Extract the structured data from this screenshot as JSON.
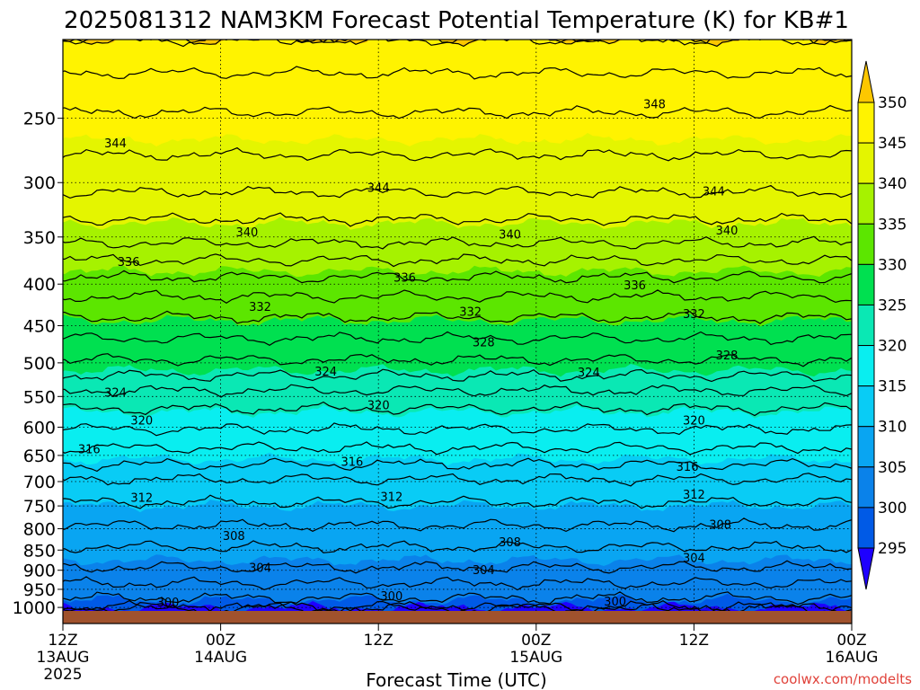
{
  "chart_data": {
    "type": "heatmap",
    "title": "2025081312 NAM3KM Forecast Potential Temperature (K) for KB#1",
    "xlabel": "Forecast Time (UTC)",
    "ylabel": "",
    "credit": "coolwx.com/modelts",
    "x_ticks": [
      {
        "label": "12Z",
        "sub": "13AUG",
        "year": "2025",
        "hour": 0
      },
      {
        "label": "00Z",
        "sub": "14AUG",
        "year": "",
        "hour": 12
      },
      {
        "label": "12Z",
        "sub": "",
        "year": "",
        "hour": 24
      },
      {
        "label": "00Z",
        "sub": "15AUG",
        "year": "",
        "hour": 36
      },
      {
        "label": "12Z",
        "sub": "",
        "year": "",
        "hour": 48
      },
      {
        "label": "00Z",
        "sub": "16AUG",
        "year": "",
        "hour": 60
      }
    ],
    "xlim_hours": [
      0,
      60
    ],
    "y_scale": "log",
    "y_ticks": [
      250,
      300,
      350,
      400,
      450,
      500,
      550,
      600,
      650,
      700,
      750,
      800,
      850,
      900,
      950,
      1000
    ],
    "ylim": [
      1010,
      200
    ],
    "grid": true,
    "colorbar": {
      "levels": [
        295,
        300,
        305,
        310,
        315,
        320,
        325,
        330,
        335,
        340,
        345,
        350
      ],
      "colors": [
        "#1e00ff",
        "#005ae6",
        "#0a82ea",
        "#09a5f2",
        "#09ccf5",
        "#09eef0",
        "#0ae8b4",
        "#00e050",
        "#5ce600",
        "#a6f200",
        "#e4f500",
        "#fff300",
        "#fdc700"
      ],
      "extend": "both"
    },
    "series": [
      {
        "pressure": 1000,
        "theta": 299
      },
      {
        "pressure": 950,
        "theta": 301.5
      },
      {
        "pressure": 900,
        "theta": 304
      },
      {
        "pressure": 850,
        "theta": 306
      },
      {
        "pressure": 800,
        "theta": 308
      },
      {
        "pressure": 750,
        "theta": 310
      },
      {
        "pressure": 700,
        "theta": 312
      },
      {
        "pressure": 650,
        "theta": 315.5
      },
      {
        "pressure": 600,
        "theta": 318.5
      },
      {
        "pressure": 550,
        "theta": 321.5
      },
      {
        "pressure": 500,
        "theta": 326
      },
      {
        "pressure": 450,
        "theta": 329.5
      },
      {
        "pressure": 400,
        "theta": 333.5
      },
      {
        "pressure": 350,
        "theta": 339
      },
      {
        "pressure": 300,
        "theta": 343
      },
      {
        "pressure": 250,
        "theta": 346
      },
      {
        "pressure": 200,
        "theta": 350
      }
    ],
    "contour_labels": [
      {
        "text": "348",
        "hour": 45,
        "pressure": 240
      },
      {
        "text": "344",
        "hour": 4,
        "pressure": 268
      },
      {
        "text": "344",
        "hour": 24,
        "pressure": 304
      },
      {
        "text": "344",
        "hour": 49.5,
        "pressure": 307
      },
      {
        "text": "340",
        "hour": 14,
        "pressure": 345
      },
      {
        "text": "340",
        "hour": 34,
        "pressure": 347
      },
      {
        "text": "340",
        "hour": 50.5,
        "pressure": 343
      },
      {
        "text": "336",
        "hour": 5,
        "pressure": 375
      },
      {
        "text": "336",
        "hour": 26,
        "pressure": 392
      },
      {
        "text": "336",
        "hour": 43.5,
        "pressure": 401
      },
      {
        "text": "332",
        "hour": 15,
        "pressure": 426
      },
      {
        "text": "332",
        "hour": 31,
        "pressure": 432
      },
      {
        "text": "332",
        "hour": 48,
        "pressure": 435
      },
      {
        "text": "328",
        "hour": 32,
        "pressure": 471
      },
      {
        "text": "328",
        "hour": 50.5,
        "pressure": 489
      },
      {
        "text": "324",
        "hour": 20,
        "pressure": 512
      },
      {
        "text": "324",
        "hour": 4,
        "pressure": 543
      },
      {
        "text": "324",
        "hour": 40,
        "pressure": 513
      },
      {
        "text": "320",
        "hour": 6,
        "pressure": 588
      },
      {
        "text": "320",
        "hour": 24,
        "pressure": 563
      },
      {
        "text": "320",
        "hour": 48,
        "pressure": 588
      },
      {
        "text": "316",
        "hour": 2,
        "pressure": 638
      },
      {
        "text": "316",
        "hour": 22,
        "pressure": 661
      },
      {
        "text": "316",
        "hour": 47.5,
        "pressure": 670
      },
      {
        "text": "312",
        "hour": 6,
        "pressure": 732
      },
      {
        "text": "312",
        "hour": 25,
        "pressure": 730
      },
      {
        "text": "312",
        "hour": 48,
        "pressure": 725
      },
      {
        "text": "308",
        "hour": 13,
        "pressure": 815
      },
      {
        "text": "308",
        "hour": 34,
        "pressure": 830
      },
      {
        "text": "308",
        "hour": 50,
        "pressure": 790
      },
      {
        "text": "304",
        "hour": 15,
        "pressure": 893
      },
      {
        "text": "304",
        "hour": 32,
        "pressure": 898
      },
      {
        "text": "304",
        "hour": 48,
        "pressure": 868
      },
      {
        "text": "300",
        "hour": 8,
        "pressure": 985
      },
      {
        "text": "300",
        "hour": 25,
        "pressure": 967
      },
      {
        "text": "300",
        "hour": 42,
        "pressure": 982
      }
    ]
  }
}
